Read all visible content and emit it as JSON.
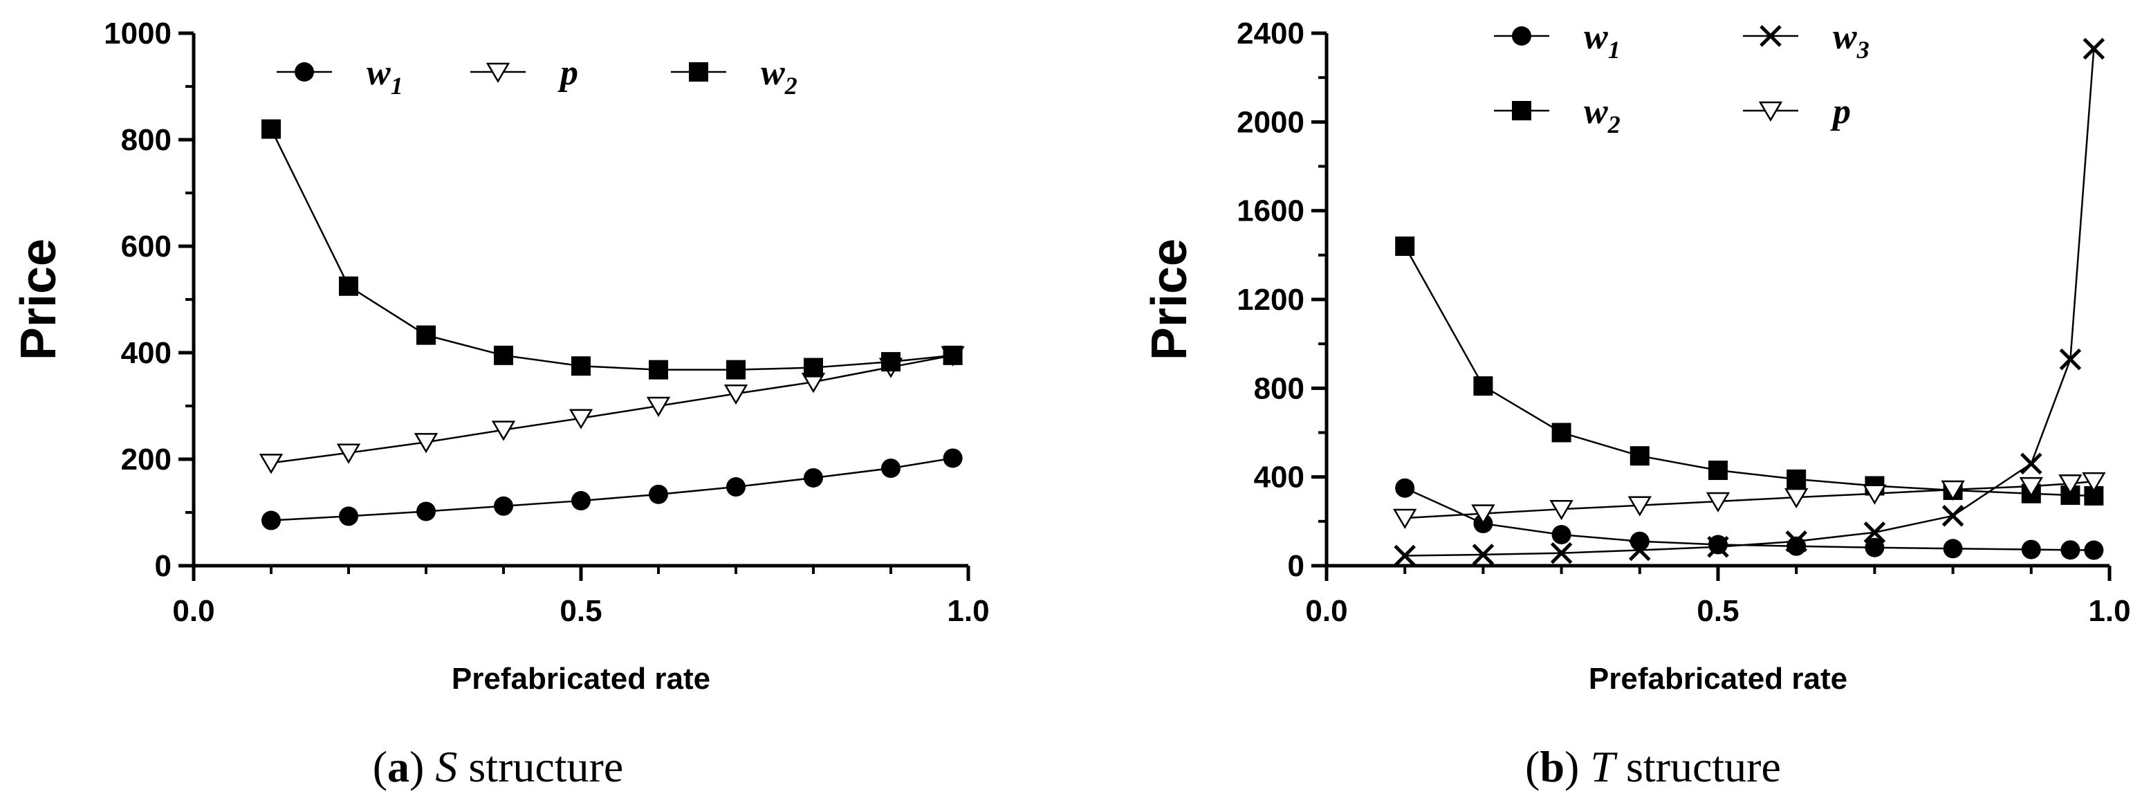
{
  "chart_data": [
    {
      "type": "line",
      "caption": {
        "open": "(",
        "letter": "a",
        "close": ")",
        "italic": "S",
        "rest": "structure"
      },
      "xlabel": "Prefabricated rate",
      "ylabel": "Price",
      "xlim": [
        0,
        1
      ],
      "ylim": [
        0,
        1000
      ],
      "xticks": [
        "0.0",
        "0.5",
        "1.0"
      ],
      "yticks": [
        "0",
        "200",
        "400",
        "600",
        "800",
        "1000"
      ],
      "legend_placement": "top",
      "x": [
        0.1,
        0.2,
        0.3,
        0.4,
        0.5,
        0.6,
        0.7,
        0.8,
        0.9,
        0.98
      ],
      "series": [
        {
          "name": "w",
          "sub": "1",
          "marker": "circle",
          "values": [
            85,
            93,
            102,
            112,
            122,
            134,
            148,
            165,
            183,
            202
          ]
        },
        {
          "name": "p",
          "sub": "",
          "marker": "triangle-down-open",
          "values": [
            193,
            212,
            232,
            255,
            277,
            300,
            323,
            345,
            373,
            395
          ]
        },
        {
          "name": "w",
          "sub": "2",
          "marker": "square",
          "values": [
            820,
            525,
            433,
            395,
            375,
            368,
            368,
            372,
            383,
            395
          ]
        }
      ]
    },
    {
      "type": "line",
      "caption": {
        "open": "(",
        "letter": "b",
        "close": ")",
        "italic": "T",
        "rest": "structure"
      },
      "xlabel": "Prefabricated rate",
      "ylabel": "Price",
      "xlim": [
        0,
        1
      ],
      "ylim": [
        0,
        2400
      ],
      "xticks": [
        "0.0",
        "0.5",
        "1.0"
      ],
      "yticks": [
        "0",
        "400",
        "800",
        "1200",
        "1600",
        "2000",
        "2400"
      ],
      "legend_placement": "top",
      "x": [
        0.1,
        0.2,
        0.3,
        0.4,
        0.5,
        0.6,
        0.7,
        0.8,
        0.9,
        0.95,
        0.98
      ],
      "series": [
        {
          "name": "w",
          "sub": "1",
          "marker": "circle",
          "values": [
            350,
            190,
            140,
            110,
            95,
            88,
            82,
            77,
            73,
            71,
            70
          ]
        },
        {
          "name": "w",
          "sub": "3",
          "marker": "x",
          "values": [
            45,
            50,
            57,
            70,
            85,
            110,
            150,
            225,
            460,
            930,
            2330
          ]
        },
        {
          "name": "w",
          "sub": "2",
          "marker": "square",
          "values": [
            1440,
            810,
            600,
            495,
            430,
            390,
            360,
            340,
            325,
            318,
            315
          ]
        },
        {
          "name": "p",
          "sub": "",
          "marker": "triangle-down-open",
          "values": [
            215,
            235,
            255,
            272,
            290,
            308,
            325,
            343,
            358,
            370,
            380
          ]
        }
      ]
    }
  ]
}
